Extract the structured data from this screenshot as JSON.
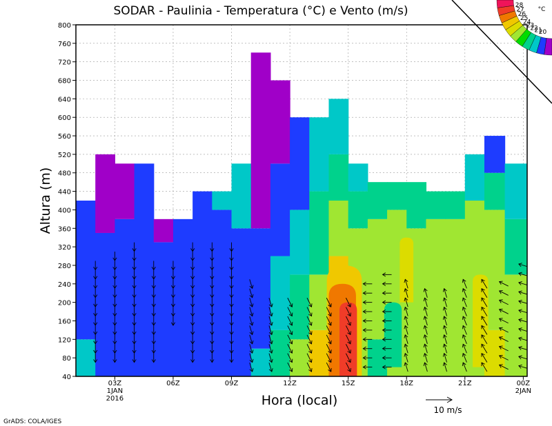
{
  "chart_data": {
    "type": "heatmap",
    "title": "SODAR - Paulinia - Temperatura (°C) e Vento (m/s)",
    "xlabel": "Hora (local)",
    "ylabel": "Altura (m)",
    "ylim": [
      40,
      800
    ],
    "yticks": [
      40,
      80,
      120,
      160,
      200,
      240,
      280,
      320,
      360,
      400,
      440,
      480,
      520,
      560,
      600,
      640,
      680,
      720,
      760,
      800
    ],
    "xlim_hours": [
      0,
      23.2
    ],
    "xticks": [
      {
        "hour": 2,
        "label": "03Z",
        "sub1": "1JAN",
        "sub2": "2016"
      },
      {
        "hour": 5,
        "label": "06Z",
        "sub1": "",
        "sub2": ""
      },
      {
        "hour": 8,
        "label": "09Z",
        "sub1": "",
        "sub2": ""
      },
      {
        "hour": 11,
        "label": "12Z",
        "sub1": "",
        "sub2": ""
      },
      {
        "hour": 14,
        "label": "15Z",
        "sub1": "",
        "sub2": ""
      },
      {
        "hour": 17,
        "label": "18Z",
        "sub1": "",
        "sub2": ""
      },
      {
        "hour": 20,
        "label": "21Z",
        "sub1": "",
        "sub2": ""
      },
      {
        "hour": 23,
        "label": "00Z",
        "sub1": "2JAN",
        "sub2": ""
      }
    ],
    "grid": true,
    "legend_position": "top-right",
    "colorbar": {
      "unit": "°C",
      "levels": [
        28,
        27,
        26,
        25,
        24,
        23,
        22,
        21,
        20
      ],
      "colors": [
        "#f0145a",
        "#f03c28",
        "#f07800",
        "#f0c800",
        "#dcdc00",
        "#a0e632",
        "#00dc00",
        "#00d28c",
        "#00c8c8",
        "#1e3cff",
        "#a000c8"
      ]
    },
    "top_heights": [
      {
        "from": 0,
        "to": 1,
        "height": 420
      },
      {
        "from": 1,
        "to": 2,
        "height": 520
      },
      {
        "from": 2,
        "to": 4,
        "height": 500
      },
      {
        "from": 4,
        "to": 6,
        "height": 380
      },
      {
        "from": 6,
        "to": 8,
        "height": 440
      },
      {
        "from": 8,
        "to": 9,
        "height": 500
      },
      {
        "from": 9,
        "to": 10,
        "height": 740
      },
      {
        "from": 10,
        "to": 11,
        "height": 680
      },
      {
        "from": 11,
        "to": 12,
        "height": 600
      },
      {
        "from": 12,
        "to": 13,
        "height": 600
      },
      {
        "from": 13,
        "to": 14,
        "height": 640
      },
      {
        "from": 14,
        "to": 15,
        "height": 500
      },
      {
        "from": 15,
        "to": 18,
        "height": 460
      },
      {
        "from": 18,
        "to": 20,
        "height": 440
      },
      {
        "from": 20,
        "to": 21,
        "height": 520
      },
      {
        "from": 21,
        "to": 22,
        "height": 560
      },
      {
        "from": 22,
        "to": 23.2,
        "height": 500
      }
    ],
    "temperature_columns": [
      {
        "hour": 0.5,
        "bands": [
          [
            40,
            120,
            "#00c8c8"
          ],
          [
            120,
            420,
            "#1e3cff"
          ]
        ]
      },
      {
        "hour": 1.5,
        "bands": [
          [
            40,
            350,
            "#1e3cff"
          ],
          [
            350,
            520,
            "#a000c8"
          ]
        ]
      },
      {
        "hour": 2.5,
        "bands": [
          [
            40,
            380,
            "#1e3cff"
          ],
          [
            380,
            500,
            "#a000c8"
          ]
        ]
      },
      {
        "hour": 3.5,
        "bands": [
          [
            40,
            500,
            "#1e3cff"
          ]
        ]
      },
      {
        "hour": 4.5,
        "bands": [
          [
            40,
            330,
            "#1e3cff"
          ],
          [
            330,
            380,
            "#a000c8"
          ]
        ]
      },
      {
        "hour": 5.5,
        "bands": [
          [
            40,
            380,
            "#1e3cff"
          ]
        ]
      },
      {
        "hour": 6.5,
        "bands": [
          [
            40,
            440,
            "#1e3cff"
          ]
        ]
      },
      {
        "hour": 7.5,
        "bands": [
          [
            40,
            400,
            "#1e3cff"
          ],
          [
            400,
            440,
            "#00c8c8"
          ]
        ]
      },
      {
        "hour": 8.5,
        "bands": [
          [
            40,
            360,
            "#1e3cff"
          ],
          [
            360,
            500,
            "#00c8c8"
          ]
        ]
      },
      {
        "hour": 9.5,
        "bands": [
          [
            40,
            100,
            "#00c8c8"
          ],
          [
            100,
            360,
            "#1e3cff"
          ],
          [
            360,
            740,
            "#a000c8"
          ]
        ]
      },
      {
        "hour": 10.5,
        "bands": [
          [
            40,
            140,
            "#00d28c"
          ],
          [
            140,
            300,
            "#00c8c8"
          ],
          [
            300,
            500,
            "#1e3cff"
          ],
          [
            500,
            680,
            "#a000c8"
          ]
        ]
      },
      {
        "hour": 11.5,
        "bands": [
          [
            40,
            120,
            "#a0e632"
          ],
          [
            120,
            260,
            "#00d28c"
          ],
          [
            260,
            400,
            "#00c8c8"
          ],
          [
            400,
            600,
            "#1e3cff"
          ]
        ]
      },
      {
        "hour": 12.5,
        "bands": [
          [
            40,
            140,
            "#f0c800"
          ],
          [
            140,
            260,
            "#a0e632"
          ],
          [
            260,
            440,
            "#00d28c"
          ],
          [
            440,
            600,
            "#00c8c8"
          ]
        ]
      },
      {
        "hour": 13.5,
        "bands": [
          [
            40,
            160,
            "#f07800"
          ],
          [
            160,
            300,
            "#f0c800"
          ],
          [
            300,
            420,
            "#a0e632"
          ],
          [
            420,
            520,
            "#00d28c"
          ],
          [
            520,
            640,
            "#00c8c8"
          ]
        ]
      },
      {
        "hour": 14.5,
        "bands": [
          [
            40,
            140,
            "#a0e632"
          ],
          [
            140,
            360,
            "#a0e632"
          ],
          [
            360,
            440,
            "#00d28c"
          ],
          [
            440,
            500,
            "#00c8c8"
          ]
        ]
      },
      {
        "hour": 15.5,
        "bands": [
          [
            40,
            120,
            "#00d28c"
          ],
          [
            120,
            380,
            "#a0e632"
          ],
          [
            380,
            460,
            "#00d28c"
          ]
        ]
      },
      {
        "hour": 16.5,
        "bands": [
          [
            40,
            400,
            "#a0e632"
          ],
          [
            400,
            460,
            "#00d28c"
          ]
        ]
      },
      {
        "hour": 17.5,
        "bands": [
          [
            40,
            360,
            "#a0e632"
          ],
          [
            360,
            460,
            "#00d28c"
          ]
        ]
      },
      {
        "hour": 18.5,
        "bands": [
          [
            40,
            380,
            "#a0e632"
          ],
          [
            380,
            440,
            "#00d28c"
          ]
        ]
      },
      {
        "hour": 19.5,
        "bands": [
          [
            40,
            380,
            "#a0e632"
          ],
          [
            380,
            440,
            "#00d28c"
          ]
        ]
      },
      {
        "hour": 20.5,
        "bands": [
          [
            40,
            420,
            "#a0e632"
          ],
          [
            420,
            520,
            "#00c8c8"
          ]
        ]
      },
      {
        "hour": 21.5,
        "bands": [
          [
            40,
            140,
            "#dcdc00"
          ],
          [
            140,
            400,
            "#a0e632"
          ],
          [
            400,
            480,
            "#00d28c"
          ],
          [
            480,
            560,
            "#1e3cff"
          ]
        ]
      },
      {
        "hour": 22.6,
        "bands": [
          [
            40,
            260,
            "#a0e632"
          ],
          [
            260,
            380,
            "#00d28c"
          ],
          [
            380,
            500,
            "#00c8c8"
          ]
        ]
      }
    ],
    "temperature_blobs": [
      {
        "hour": 13.8,
        "half_width_hours": 0.9,
        "from": 40,
        "to": 280,
        "color": "#f0c800"
      },
      {
        "hour": 13.7,
        "half_width_hours": 0.7,
        "from": 40,
        "to": 240,
        "color": "#f07800"
      },
      {
        "hour": 14.0,
        "half_width_hours": 0.45,
        "from": 40,
        "to": 200,
        "color": "#f03c28"
      },
      {
        "hour": 17.0,
        "half_width_hours": 0.35,
        "from": 200,
        "to": 340,
        "color": "#dcdc00"
      },
      {
        "hour": 16.3,
        "half_width_hours": 0.45,
        "from": 60,
        "to": 200,
        "color": "#00d28c"
      },
      {
        "hour": 20.8,
        "half_width_hours": 0.4,
        "from": 60,
        "to": 260,
        "color": "#dcdc00"
      }
    ],
    "wind_columns": [
      {
        "hour": 1.0,
        "from": 80,
        "to": 280,
        "u": 0,
        "v": -1
      },
      {
        "hour": 2.0,
        "from": 80,
        "to": 300,
        "u": 0,
        "v": -1
      },
      {
        "hour": 3.0,
        "from": 80,
        "to": 320,
        "u": 0,
        "v": -1
      },
      {
        "hour": 4.0,
        "from": 80,
        "to": 280,
        "u": 0,
        "v": -1
      },
      {
        "hour": 5.0,
        "from": 160,
        "to": 280,
        "u": 0,
        "v": -1
      },
      {
        "hour": 6.0,
        "from": 80,
        "to": 320,
        "u": 0,
        "v": -1
      },
      {
        "hour": 7.0,
        "from": 80,
        "to": 320,
        "u": 0,
        "v": -1
      },
      {
        "hour": 8.0,
        "from": 80,
        "to": 320,
        "u": 0,
        "v": -1
      },
      {
        "hour": 9.0,
        "from": 60,
        "to": 240,
        "u": 0.3,
        "v": -1
      },
      {
        "hour": 10.0,
        "from": 60,
        "to": 200,
        "u": 0.3,
        "v": -1
      },
      {
        "hour": 11.0,
        "from": 60,
        "to": 200,
        "u": 0.5,
        "v": -1
      },
      {
        "hour": 12.0,
        "from": 60,
        "to": 200,
        "u": 0.5,
        "v": -1
      },
      {
        "hour": 13.0,
        "from": 60,
        "to": 200,
        "u": 0.5,
        "v": -1
      },
      {
        "hour": 14.0,
        "from": 60,
        "to": 200,
        "u": 0.5,
        "v": -1
      },
      {
        "hour": 15.0,
        "from": 60,
        "to": 240,
        "u": -1,
        "v": 0
      },
      {
        "hour": 16.0,
        "from": 60,
        "to": 260,
        "u": -1,
        "v": 0
      },
      {
        "hour": 17.0,
        "from": 60,
        "to": 240,
        "u": -0.3,
        "v": 1
      },
      {
        "hour": 18.0,
        "from": 60,
        "to": 220,
        "u": -0.3,
        "v": 1
      },
      {
        "hour": 19.0,
        "from": 60,
        "to": 220,
        "u": -0.3,
        "v": 1
      },
      {
        "hour": 20.0,
        "from": 60,
        "to": 240,
        "u": -0.4,
        "v": 1
      },
      {
        "hour": 21.0,
        "from": 60,
        "to": 240,
        "u": -0.6,
        "v": 1
      },
      {
        "hour": 22.0,
        "from": 60,
        "to": 240,
        "u": -1,
        "v": 0.5
      },
      {
        "hour": 23.0,
        "from": 60,
        "to": 280,
        "u": -1,
        "v": 0.3
      }
    ],
    "wind_scale": {
      "label": "10 m/s"
    }
  },
  "footer": {
    "credit": "GrADS: COLA/IGES"
  }
}
